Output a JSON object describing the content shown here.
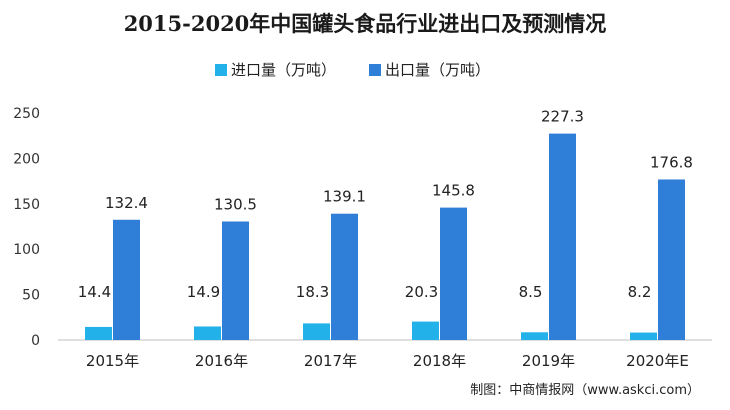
{
  "chart_data": {
    "type": "bar",
    "title": "2015-2020年中国罐头食品行业进出口及预测情况",
    "categories": [
      "2015年",
      "2016年",
      "2017年",
      "2018年",
      "2019年",
      "2020年E"
    ],
    "series": [
      {
        "name": "进口量（万吨）",
        "values": [
          14.4,
          14.9,
          18.3,
          20.3,
          8.5,
          8.2
        ],
        "labels": [
          "14.4",
          "14.9",
          "18.3",
          "20.3",
          "8.5",
          "8.2"
        ],
        "color": "#23b1ea"
      },
      {
        "name": "出口量（万吨）",
        "values": [
          132.4,
          130.5,
          139.1,
          145.8,
          227.3,
          176.8
        ],
        "labels": [
          "132.4",
          "130.5",
          "139.1",
          "145.8",
          "227.3",
          "176.8"
        ],
        "color": "#2f7ed8"
      }
    ],
    "xlabel": "",
    "ylabel": "",
    "ylim": [
      0,
      250
    ],
    "yticks": [
      "0",
      "50",
      "100",
      "150",
      "200",
      "250"
    ],
    "legend_position": "top",
    "grid": false
  },
  "source": "制图：中商情报网（www.askci.com）"
}
